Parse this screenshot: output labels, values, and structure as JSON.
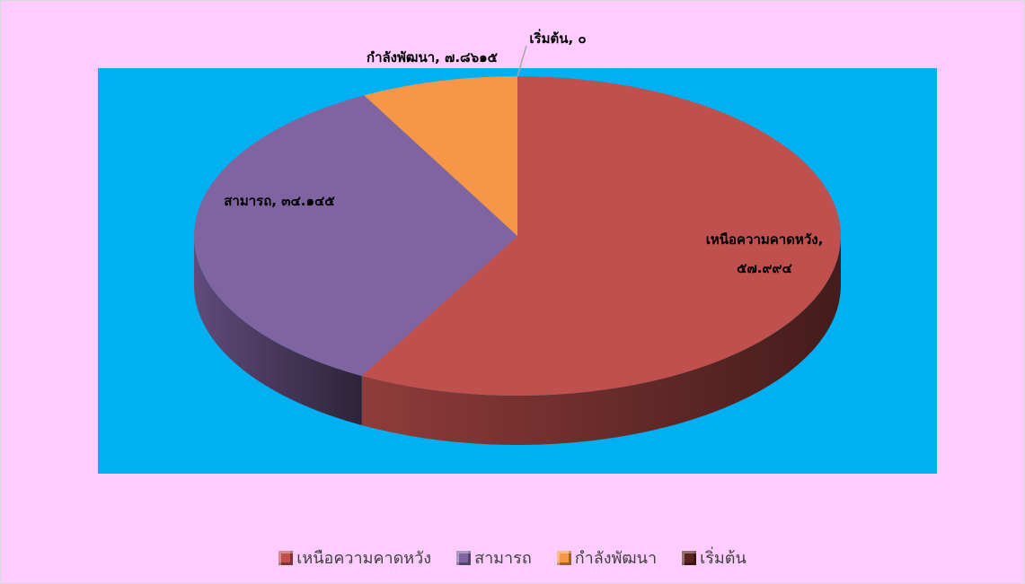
{
  "chart_data": {
    "type": "pie",
    "categories": [
      "เหนือความคาดหวัง",
      "สามารถ",
      "กำลังพัฒนา",
      "เริ่มต้น"
    ],
    "values": [
      57.994,
      34.145,
      7.8615,
      0
    ],
    "value_labels": [
      "เหนือความคาดหวัง, ๕๗.๙๙๔",
      "สามารถ, ๓๔.๑๔๕",
      "กำลังพัฒนา, ๗.๘๖๑๕",
      "เริ่มต้น, ๐"
    ],
    "colors": [
      "#c0504d",
      "#8064a2",
      "#f79646",
      "#5a2321"
    ],
    "legend": "bottom"
  }
}
